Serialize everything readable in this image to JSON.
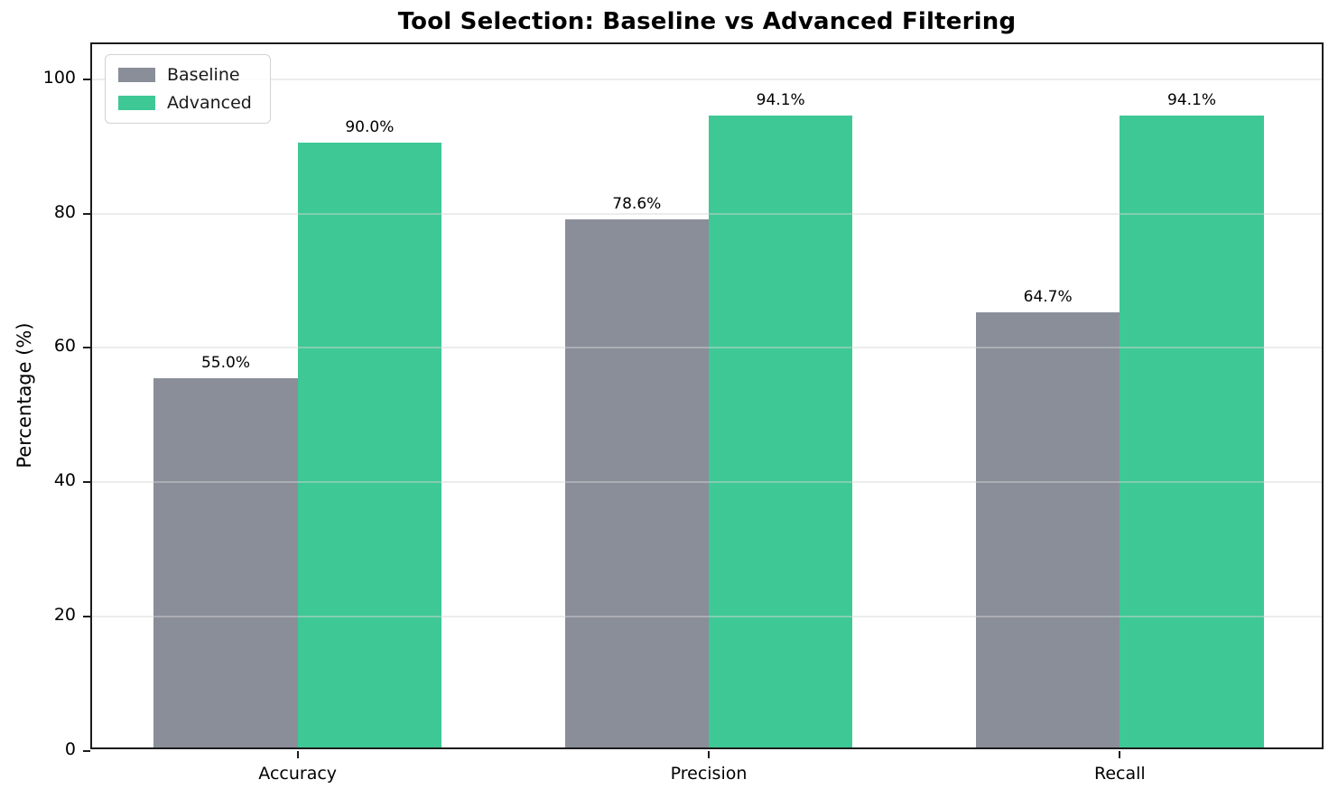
{
  "chart_data": {
    "type": "bar",
    "title": "Tool Selection: Baseline vs Advanced Filtering",
    "xlabel": "",
    "ylabel": "Percentage (%)",
    "categories": [
      "Accuracy",
      "Precision",
      "Recall"
    ],
    "series": [
      {
        "name": "Baseline",
        "color": "#8A8E99",
        "values": [
          55.0,
          78.6,
          64.7
        ],
        "value_labels": [
          "55.0%",
          "78.6%",
          "64.7%"
        ]
      },
      {
        "name": "Advanced",
        "color": "#3EC896",
        "values": [
          90.0,
          94.1,
          94.1
        ],
        "value_labels": [
          "90.0%",
          "94.1%",
          "94.1%"
        ]
      }
    ],
    "ylim": [
      0,
      105.2
    ],
    "yticks": [
      0,
      20,
      40,
      60,
      80,
      100
    ],
    "grid": true,
    "grid_axis": "y",
    "legend_position": "upper left",
    "bar_width_fraction": 0.35
  }
}
